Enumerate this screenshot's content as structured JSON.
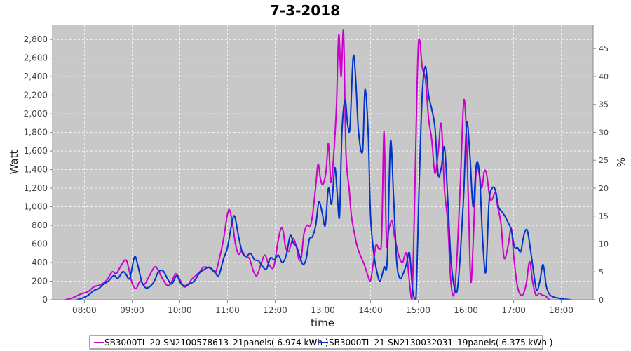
{
  "chart_data": {
    "type": "line",
    "title": "7-3-2018",
    "xlabel": "time",
    "ylabel": "Watt",
    "y2label": "%",
    "x_ticks": [
      "08:00",
      "09:00",
      "10:00",
      "11:00",
      "12:00",
      "13:00",
      "14:00",
      "15:00",
      "16:00",
      "17:00",
      "18:00"
    ],
    "y_ticks": [
      "0",
      "200",
      "400",
      "600",
      "800",
      "1,000",
      "1,200",
      "1,400",
      "1,600",
      "1,800",
      "2,000",
      "2,200",
      "2,400",
      "2,600",
      "2,800"
    ],
    "y2_ticks": [
      "0",
      "5",
      "10",
      "15",
      "20",
      "25",
      "30",
      "35",
      "40",
      "45"
    ],
    "xlim": [
      "07:20",
      "18:40"
    ],
    "ylim": [
      0,
      2960
    ],
    "y2lim": [
      0,
      49.3
    ],
    "grid": true,
    "legend_position": "bottom",
    "plot_background": "#c8c8c8",
    "series": [
      {
        "name": "SB3000TL-20-SN2100578613_21panels",
        "energy": "( 6.974 kWh )",
        "color": "#cc00cc",
        "points": [
          [
            "07:35",
            0
          ],
          [
            "07:45",
            20
          ],
          [
            "07:55",
            60
          ],
          [
            "08:05",
            90
          ],
          [
            "08:12",
            140
          ],
          [
            "08:20",
            160
          ],
          [
            "08:28",
            210
          ],
          [
            "08:35",
            300
          ],
          [
            "08:40",
            280
          ],
          [
            "08:45",
            350
          ],
          [
            "08:52",
            430
          ],
          [
            "08:56",
            330
          ],
          [
            "09:00",
            180
          ],
          [
            "09:05",
            120
          ],
          [
            "09:10",
            200
          ],
          [
            "09:15",
            160
          ],
          [
            "09:20",
            230
          ],
          [
            "09:28",
            350
          ],
          [
            "09:32",
            330
          ],
          [
            "09:38",
            230
          ],
          [
            "09:45",
            150
          ],
          [
            "09:50",
            200
          ],
          [
            "09:55",
            280
          ],
          [
            "10:00",
            220
          ],
          [
            "10:05",
            140
          ],
          [
            "10:10",
            160
          ],
          [
            "10:15",
            220
          ],
          [
            "10:20",
            260
          ],
          [
            "10:25",
            300
          ],
          [
            "10:30",
            350
          ],
          [
            "10:38",
            340
          ],
          [
            "10:45",
            300
          ],
          [
            "10:50",
            450
          ],
          [
            "10:55",
            650
          ],
          [
            "11:00",
            920
          ],
          [
            "11:03",
            960
          ],
          [
            "11:07",
            780
          ],
          [
            "11:10",
            600
          ],
          [
            "11:14",
            490
          ],
          [
            "11:18",
            530
          ],
          [
            "11:22",
            470
          ],
          [
            "11:27",
            450
          ],
          [
            "11:30",
            380
          ],
          [
            "11:33",
            300
          ],
          [
            "11:37",
            260
          ],
          [
            "11:42",
            380
          ],
          [
            "11:47",
            480
          ],
          [
            "11:52",
            380
          ],
          [
            "11:58",
            350
          ],
          [
            "12:03",
            600
          ],
          [
            "12:07",
            760
          ],
          [
            "12:10",
            740
          ],
          [
            "12:13",
            570
          ],
          [
            "12:17",
            520
          ],
          [
            "12:20",
            600
          ],
          [
            "12:23",
            660
          ],
          [
            "12:27",
            560
          ],
          [
            "12:30",
            430
          ],
          [
            "12:33",
            460
          ],
          [
            "12:36",
            700
          ],
          [
            "12:40",
            800
          ],
          [
            "12:44",
            790
          ],
          [
            "12:47",
            910
          ],
          [
            "12:51",
            1220
          ],
          [
            "12:54",
            1460
          ],
          [
            "12:57",
            1300
          ],
          [
            "13:00",
            1240
          ],
          [
            "13:04",
            1380
          ],
          [
            "13:07",
            1680
          ],
          [
            "13:10",
            1270
          ],
          [
            "13:13",
            1480
          ],
          [
            "13:17",
            2070
          ],
          [
            "13:20",
            2850
          ],
          [
            "13:23",
            2400
          ],
          [
            "13:26",
            2880
          ],
          [
            "13:29",
            1600
          ],
          [
            "13:33",
            1200
          ],
          [
            "13:36",
            900
          ],
          [
            "13:40",
            700
          ],
          [
            "13:43",
            580
          ],
          [
            "13:47",
            480
          ],
          [
            "13:52",
            380
          ],
          [
            "13:57",
            250
          ],
          [
            "14:00",
            210
          ],
          [
            "14:04",
            430
          ],
          [
            "14:07",
            590
          ],
          [
            "14:11",
            550
          ],
          [
            "14:14",
            680
          ],
          [
            "14:17",
            1810
          ],
          [
            "14:20",
            620
          ],
          [
            "14:23",
            760
          ],
          [
            "14:27",
            850
          ],
          [
            "14:30",
            690
          ],
          [
            "14:35",
            490
          ],
          [
            "14:40",
            400
          ],
          [
            "14:45",
            500
          ],
          [
            "14:49",
            180
          ],
          [
            "14:52",
            0
          ],
          [
            "14:55",
            900
          ],
          [
            "14:58",
            2100
          ],
          [
            "15:00",
            2720
          ],
          [
            "15:02",
            2780
          ],
          [
            "15:05",
            2500
          ],
          [
            "15:09",
            2370
          ],
          [
            "15:13",
            1950
          ],
          [
            "15:17",
            1720
          ],
          [
            "15:21",
            1360
          ],
          [
            "15:25",
            1580
          ],
          [
            "15:29",
            1890
          ],
          [
            "15:33",
            1180
          ],
          [
            "15:37",
            850
          ],
          [
            "15:41",
            200
          ],
          [
            "15:45",
            60
          ],
          [
            "15:49",
            500
          ],
          [
            "15:53",
            1270
          ],
          [
            "15:57",
            2120
          ],
          [
            "16:00",
            1900
          ],
          [
            "16:03",
            1080
          ],
          [
            "16:06",
            200
          ],
          [
            "16:09",
            600
          ],
          [
            "16:13",
            1400
          ],
          [
            "16:17",
            1340
          ],
          [
            "16:20",
            1200
          ],
          [
            "16:23",
            1380
          ],
          [
            "16:26",
            1350
          ],
          [
            "16:30",
            1100
          ],
          [
            "16:33",
            1080
          ],
          [
            "16:37",
            1150
          ],
          [
            "16:40",
            1000
          ],
          [
            "16:44",
            820
          ],
          [
            "16:48",
            450
          ],
          [
            "16:53",
            580
          ],
          [
            "16:57",
            770
          ],
          [
            "17:00",
            480
          ],
          [
            "17:04",
            180
          ],
          [
            "17:08",
            60
          ],
          [
            "17:12",
            60
          ],
          [
            "17:16",
            180
          ],
          [
            "17:20",
            410
          ],
          [
            "17:24",
            190
          ],
          [
            "17:28",
            50
          ],
          [
            "17:32",
            70
          ],
          [
            "17:36",
            50
          ],
          [
            "17:40",
            40
          ],
          [
            "17:45",
            0
          ]
        ]
      },
      {
        "name": "SB3000TL-21-SN2130032031_19panels",
        "energy": "( 6.375 kWh )",
        "color": "#0033cc",
        "points": [
          [
            "07:50",
            0
          ],
          [
            "07:58",
            20
          ],
          [
            "08:05",
            50
          ],
          [
            "08:12",
            100
          ],
          [
            "08:18",
            120
          ],
          [
            "08:23",
            160
          ],
          [
            "08:30",
            200
          ],
          [
            "08:37",
            260
          ],
          [
            "08:42",
            230
          ],
          [
            "08:48",
            300
          ],
          [
            "08:52",
            280
          ],
          [
            "08:57",
            230
          ],
          [
            "09:03",
            460
          ],
          [
            "09:07",
            380
          ],
          [
            "09:12",
            200
          ],
          [
            "09:17",
            130
          ],
          [
            "09:22",
            140
          ],
          [
            "09:28",
            200
          ],
          [
            "09:33",
            300
          ],
          [
            "09:39",
            310
          ],
          [
            "09:45",
            220
          ],
          [
            "09:50",
            170
          ],
          [
            "09:56",
            260
          ],
          [
            "10:01",
            180
          ],
          [
            "10:06",
            150
          ],
          [
            "10:12",
            170
          ],
          [
            "10:18",
            200
          ],
          [
            "10:25",
            290
          ],
          [
            "10:30",
            320
          ],
          [
            "10:37",
            350
          ],
          [
            "10:44",
            300
          ],
          [
            "10:49",
            260
          ],
          [
            "10:55",
            440
          ],
          [
            "11:00",
            560
          ],
          [
            "11:05",
            800
          ],
          [
            "11:09",
            900
          ],
          [
            "11:14",
            680
          ],
          [
            "11:19",
            500
          ],
          [
            "11:24",
            470
          ],
          [
            "11:29",
            500
          ],
          [
            "11:34",
            430
          ],
          [
            "11:39",
            420
          ],
          [
            "11:44",
            360
          ],
          [
            "11:49",
            330
          ],
          [
            "11:54",
            450
          ],
          [
            "11:59",
            430
          ],
          [
            "12:04",
            480
          ],
          [
            "12:09",
            400
          ],
          [
            "12:14",
            480
          ],
          [
            "12:19",
            690
          ],
          [
            "12:23",
            610
          ],
          [
            "12:27",
            570
          ],
          [
            "12:31",
            470
          ],
          [
            "12:35",
            380
          ],
          [
            "12:39",
            440
          ],
          [
            "12:43",
            650
          ],
          [
            "12:47",
            680
          ],
          [
            "12:51",
            800
          ],
          [
            "12:55",
            1050
          ],
          [
            "12:59",
            940
          ],
          [
            "13:03",
            800
          ],
          [
            "13:07",
            1200
          ],
          [
            "13:11",
            1030
          ],
          [
            "13:15",
            1420
          ],
          [
            "13:18",
            1150
          ],
          [
            "13:21",
            900
          ],
          [
            "13:24",
            1800
          ],
          [
            "13:28",
            2150
          ],
          [
            "13:31",
            1900
          ],
          [
            "13:34",
            1850
          ],
          [
            "13:38",
            2600
          ],
          [
            "13:41",
            2420
          ],
          [
            "13:45",
            1800
          ],
          [
            "13:50",
            1600
          ],
          [
            "13:53",
            2260
          ],
          [
            "13:57",
            1800
          ],
          [
            "14:00",
            900
          ],
          [
            "14:04",
            500
          ],
          [
            "14:08",
            300
          ],
          [
            "14:12",
            200
          ],
          [
            "14:17",
            350
          ],
          [
            "14:21",
            430
          ],
          [
            "14:25",
            1700
          ],
          [
            "14:29",
            1100
          ],
          [
            "14:33",
            400
          ],
          [
            "14:37",
            230
          ],
          [
            "14:41",
            280
          ],
          [
            "14:45",
            380
          ],
          [
            "14:49",
            500
          ],
          [
            "14:53",
            100
          ],
          [
            "14:57",
            0
          ],
          [
            "15:01",
            1200
          ],
          [
            "15:05",
            2200
          ],
          [
            "15:09",
            2510
          ],
          [
            "15:13",
            2200
          ],
          [
            "15:17",
            2050
          ],
          [
            "15:21",
            1850
          ],
          [
            "15:25",
            1350
          ],
          [
            "15:29",
            1420
          ],
          [
            "15:33",
            1640
          ],
          [
            "15:37",
            1100
          ],
          [
            "15:41",
            450
          ],
          [
            "15:45",
            150
          ],
          [
            "15:49",
            100
          ],
          [
            "15:53",
            500
          ],
          [
            "15:57",
            1100
          ],
          [
            "16:01",
            1900
          ],
          [
            "16:05",
            1550
          ],
          [
            "16:09",
            1000
          ],
          [
            "16:13",
            1450
          ],
          [
            "16:17",
            1350
          ],
          [
            "16:21",
            650
          ],
          [
            "16:25",
            300
          ],
          [
            "16:29",
            1050
          ],
          [
            "16:33",
            1200
          ],
          [
            "16:37",
            1180
          ],
          [
            "16:41",
            1000
          ],
          [
            "16:45",
            950
          ],
          [
            "16:49",
            900
          ],
          [
            "16:53",
            830
          ],
          [
            "16:57",
            750
          ],
          [
            "17:01",
            570
          ],
          [
            "17:05",
            560
          ],
          [
            "17:09",
            520
          ],
          [
            "17:13",
            700
          ],
          [
            "17:17",
            750
          ],
          [
            "17:21",
            550
          ],
          [
            "17:25",
            300
          ],
          [
            "17:29",
            100
          ],
          [
            "17:33",
            200
          ],
          [
            "17:37",
            380
          ],
          [
            "17:41",
            150
          ],
          [
            "17:45",
            60
          ],
          [
            "17:50",
            30
          ],
          [
            "17:55",
            20
          ],
          [
            "18:00",
            10
          ],
          [
            "18:05",
            5
          ],
          [
            "18:12",
            0
          ]
        ]
      }
    ]
  }
}
